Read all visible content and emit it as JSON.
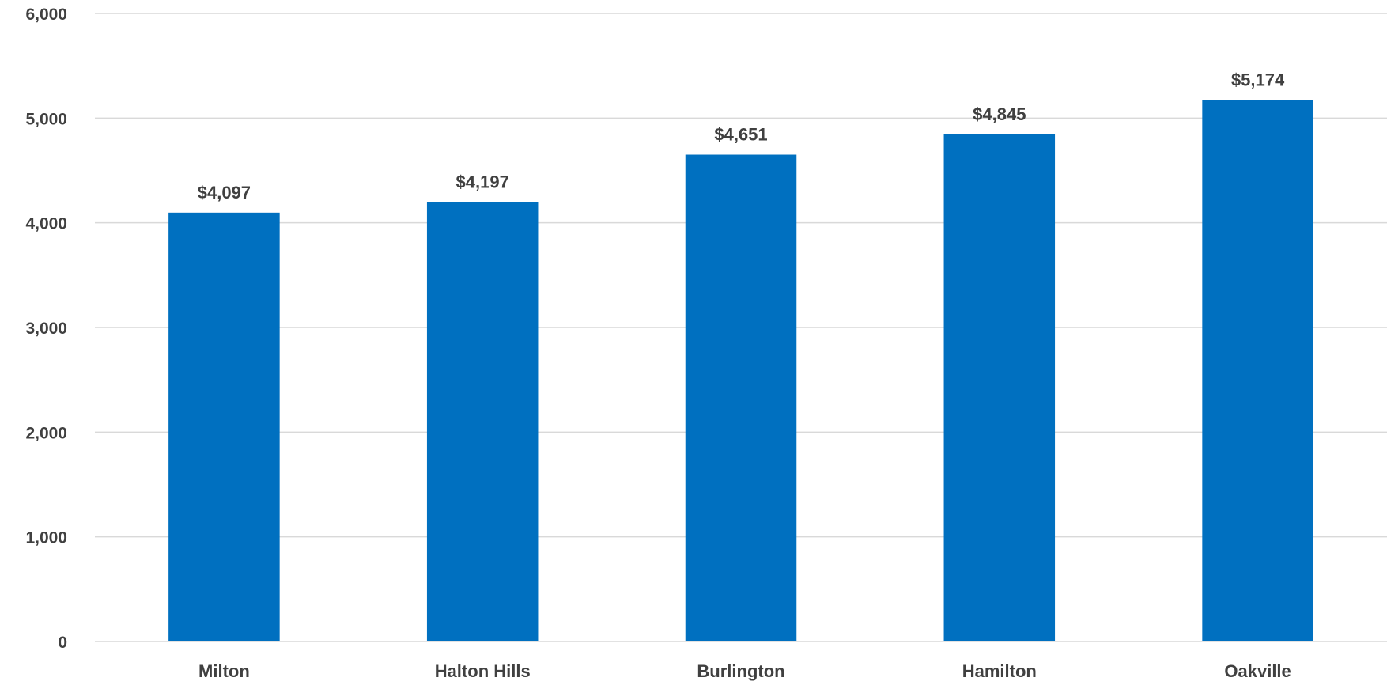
{
  "chart_data": {
    "type": "bar",
    "categories": [
      "Milton",
      "Halton Hills",
      "Burlington",
      "Hamilton",
      "Oakville"
    ],
    "values": [
      4097,
      4197,
      4651,
      4845,
      5174
    ],
    "data_labels": [
      "$4,097",
      "$4,197",
      "$4,651",
      "$4,845",
      "$5,174"
    ],
    "y_ticks": [
      "0",
      "1,000",
      "2,000",
      "3,000",
      "4,000",
      "5,000",
      "6,000"
    ],
    "ylim": [
      0,
      6000
    ],
    "grid": true,
    "bar_color": "#0070C0",
    "gridline_color": "#D9D9D9",
    "text_color": "#404040"
  }
}
